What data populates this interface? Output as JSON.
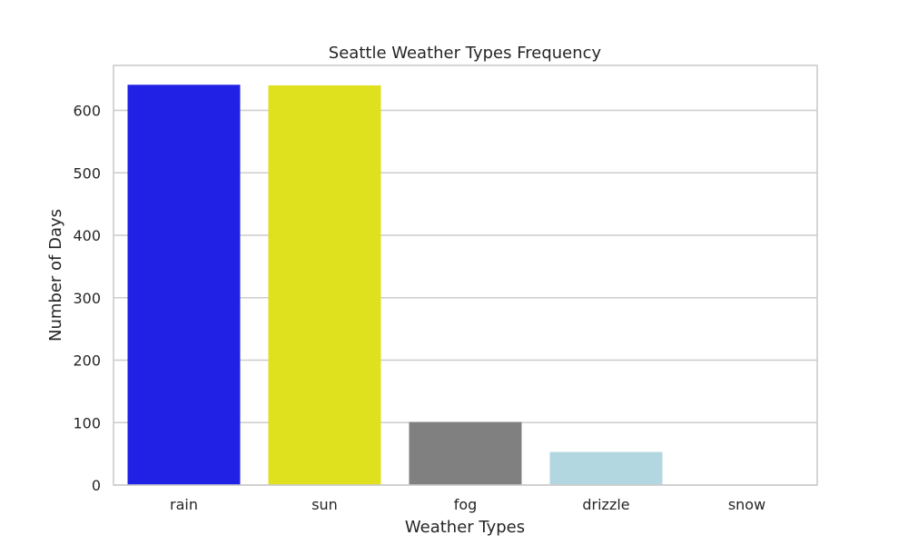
{
  "chart_data": {
    "type": "bar",
    "title": "Seattle Weather Types Frequency",
    "xlabel": "Weather Types",
    "ylabel": "Number of Days",
    "categories": [
      "rain",
      "sun",
      "fog",
      "drizzle",
      "snow"
    ],
    "values": [
      641,
      640,
      101,
      53,
      0
    ],
    "colors": [
      "#2121e6",
      "#dfe01e",
      "#808080",
      "#b3d7e1",
      "#cfdfe6"
    ],
    "ylim": [
      0,
      672
    ],
    "yticks": [
      0,
      100,
      200,
      300,
      400,
      500,
      600
    ],
    "ytick_labels": [
      "0",
      "100",
      "200",
      "300",
      "400",
      "500",
      "600"
    ],
    "grid": true,
    "grid_axis": "y",
    "grid_color": "#cccccc",
    "spine_color": "#cccccc",
    "legend": false
  }
}
